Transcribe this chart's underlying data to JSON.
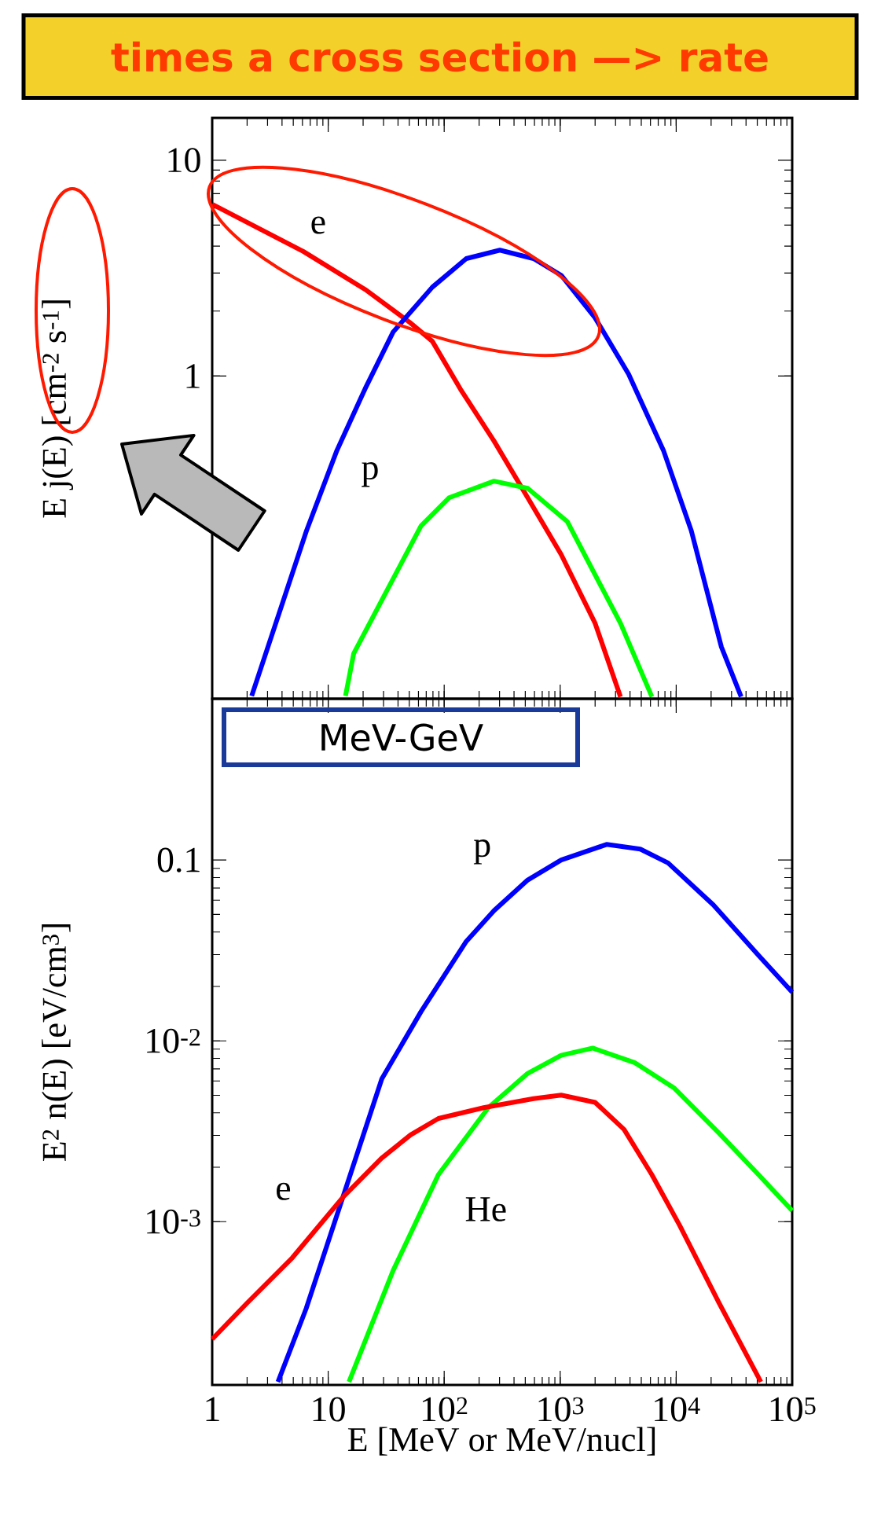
{
  "chart_data": [
    {
      "type": "line",
      "ylabel": "E j(E) [cm$^{-2}$ s$^{-1}$]",
      "log": "xy",
      "xlim": [
        1,
        100000
      ],
      "ylim": [
        0.032,
        15.7
      ],
      "tick_labels": "y",
      "xticks": [
        1,
        10,
        100,
        1000,
        10000,
        100000
      ],
      "yticks": [
        1,
        10
      ],
      "annotations": [
        "times a cross section —> rate"
      ],
      "series": [
        {
          "name": "e",
          "color": "#ff0000",
          "x": [
            1,
            6.1,
            20.8,
            50.7,
            79,
            138,
            269,
            525,
            1020,
            2000,
            3310
          ],
          "values": [
            6.25,
            3.78,
            2.52,
            1.77,
            1.45,
            0.87,
            0.5,
            0.273,
            0.149,
            0.0716,
            0.0327
          ]
        },
        {
          "name": "p",
          "color": "#0000ff",
          "x": [
            2.19,
            6.5,
            11.9,
            20.8,
            36.3,
            79,
            155,
            302,
            589,
            1020,
            2000,
            3890,
            7760,
            13500,
            24500,
            36300
          ],
          "values": [
            0.033,
            0.192,
            0.453,
            0.873,
            1.6,
            2.58,
            3.5,
            3.83,
            3.5,
            2.93,
            1.86,
            1.02,
            0.453,
            0.192,
            0.0557,
            0.0327
          ]
        },
        {
          "color": "#00ff00",
          "x": [
            14.1,
            16.6,
            63.1,
            110,
            269,
            525,
            1150,
            3310,
            6170
          ],
          "values": [
            0.033,
            0.0519,
            0.202,
            0.273,
            0.326,
            0.302,
            0.212,
            0.0716,
            0.0327
          ]
        }
      ]
    },
    {
      "type": "line",
      "xlabel": "E [MeV or MeV/nucl]",
      "ylabel": "E$^{2}$ n(E) [eV/cm$^{3}$]",
      "log": "xy",
      "xlim": [
        1,
        100000
      ],
      "ylim": [
        0.000125,
        0.78
      ],
      "xticks": [
        1,
        10,
        {
          "value": 100,
          "label": "10$^{2}$"
        },
        {
          "value": 1000,
          "label": "10$^{3}$"
        },
        {
          "value": 10000,
          "label": "10$^{4}$"
        },
        {
          "value": 100000,
          "label": "10$^{5}$"
        }
      ],
      "yticks": [
        {
          "value": 0.001,
          "label": "10$^{-3}$"
        },
        {
          "value": 0.01,
          "label": "10$^{-2}$"
        },
        0.1
      ],
      "annotations": [
        "MeV-GeV"
      ],
      "series": [
        {
          "name": "p",
          "color": "#0000ff",
          "x": [
            3.69,
            6.46,
            13.6,
            29.0,
            63.1,
            155,
            269,
            525,
            1020,
            2510,
            4900,
            8510,
            20900,
            51300,
            100000
          ],
          "values": [
            0.00013,
            0.000331,
            0.00141,
            0.00617,
            0.0145,
            0.0355,
            0.0525,
            0.0776,
            0.1,
            0.122,
            0.115,
            0.0964,
            0.0565,
            0.0297,
            0.0186
          ]
        },
        {
          "name": "He",
          "color": "#00ff00",
          "x": [
            15.1,
            36.3,
            89.1,
            240,
            525,
            1020,
            1910,
            4370,
            9550,
            23400,
            51300,
            100000
          ],
          "values": [
            0.00013,
            0.000537,
            0.00182,
            0.00427,
            0.00661,
            0.00832,
            0.00912,
            0.00759,
            0.0055,
            0.00309,
            0.00182,
            0.00115
          ]
        },
        {
          "name": "e",
          "color": "#ff0000",
          "x": [
            1,
            2.0,
            4.9,
            13.6,
            28.8,
            51.3,
            89.1,
            219,
            589,
            1020,
            2000,
            3550,
            6170,
            10700,
            23400,
            53700
          ],
          "values": [
            0.000224,
            0.000355,
            0.000631,
            0.00138,
            0.00224,
            0.00302,
            0.00372,
            0.00427,
            0.00479,
            0.00501,
            0.00457,
            0.00324,
            0.00182,
            0.000955,
            0.000355,
            0.00013
          ]
        }
      ]
    }
  ]
}
